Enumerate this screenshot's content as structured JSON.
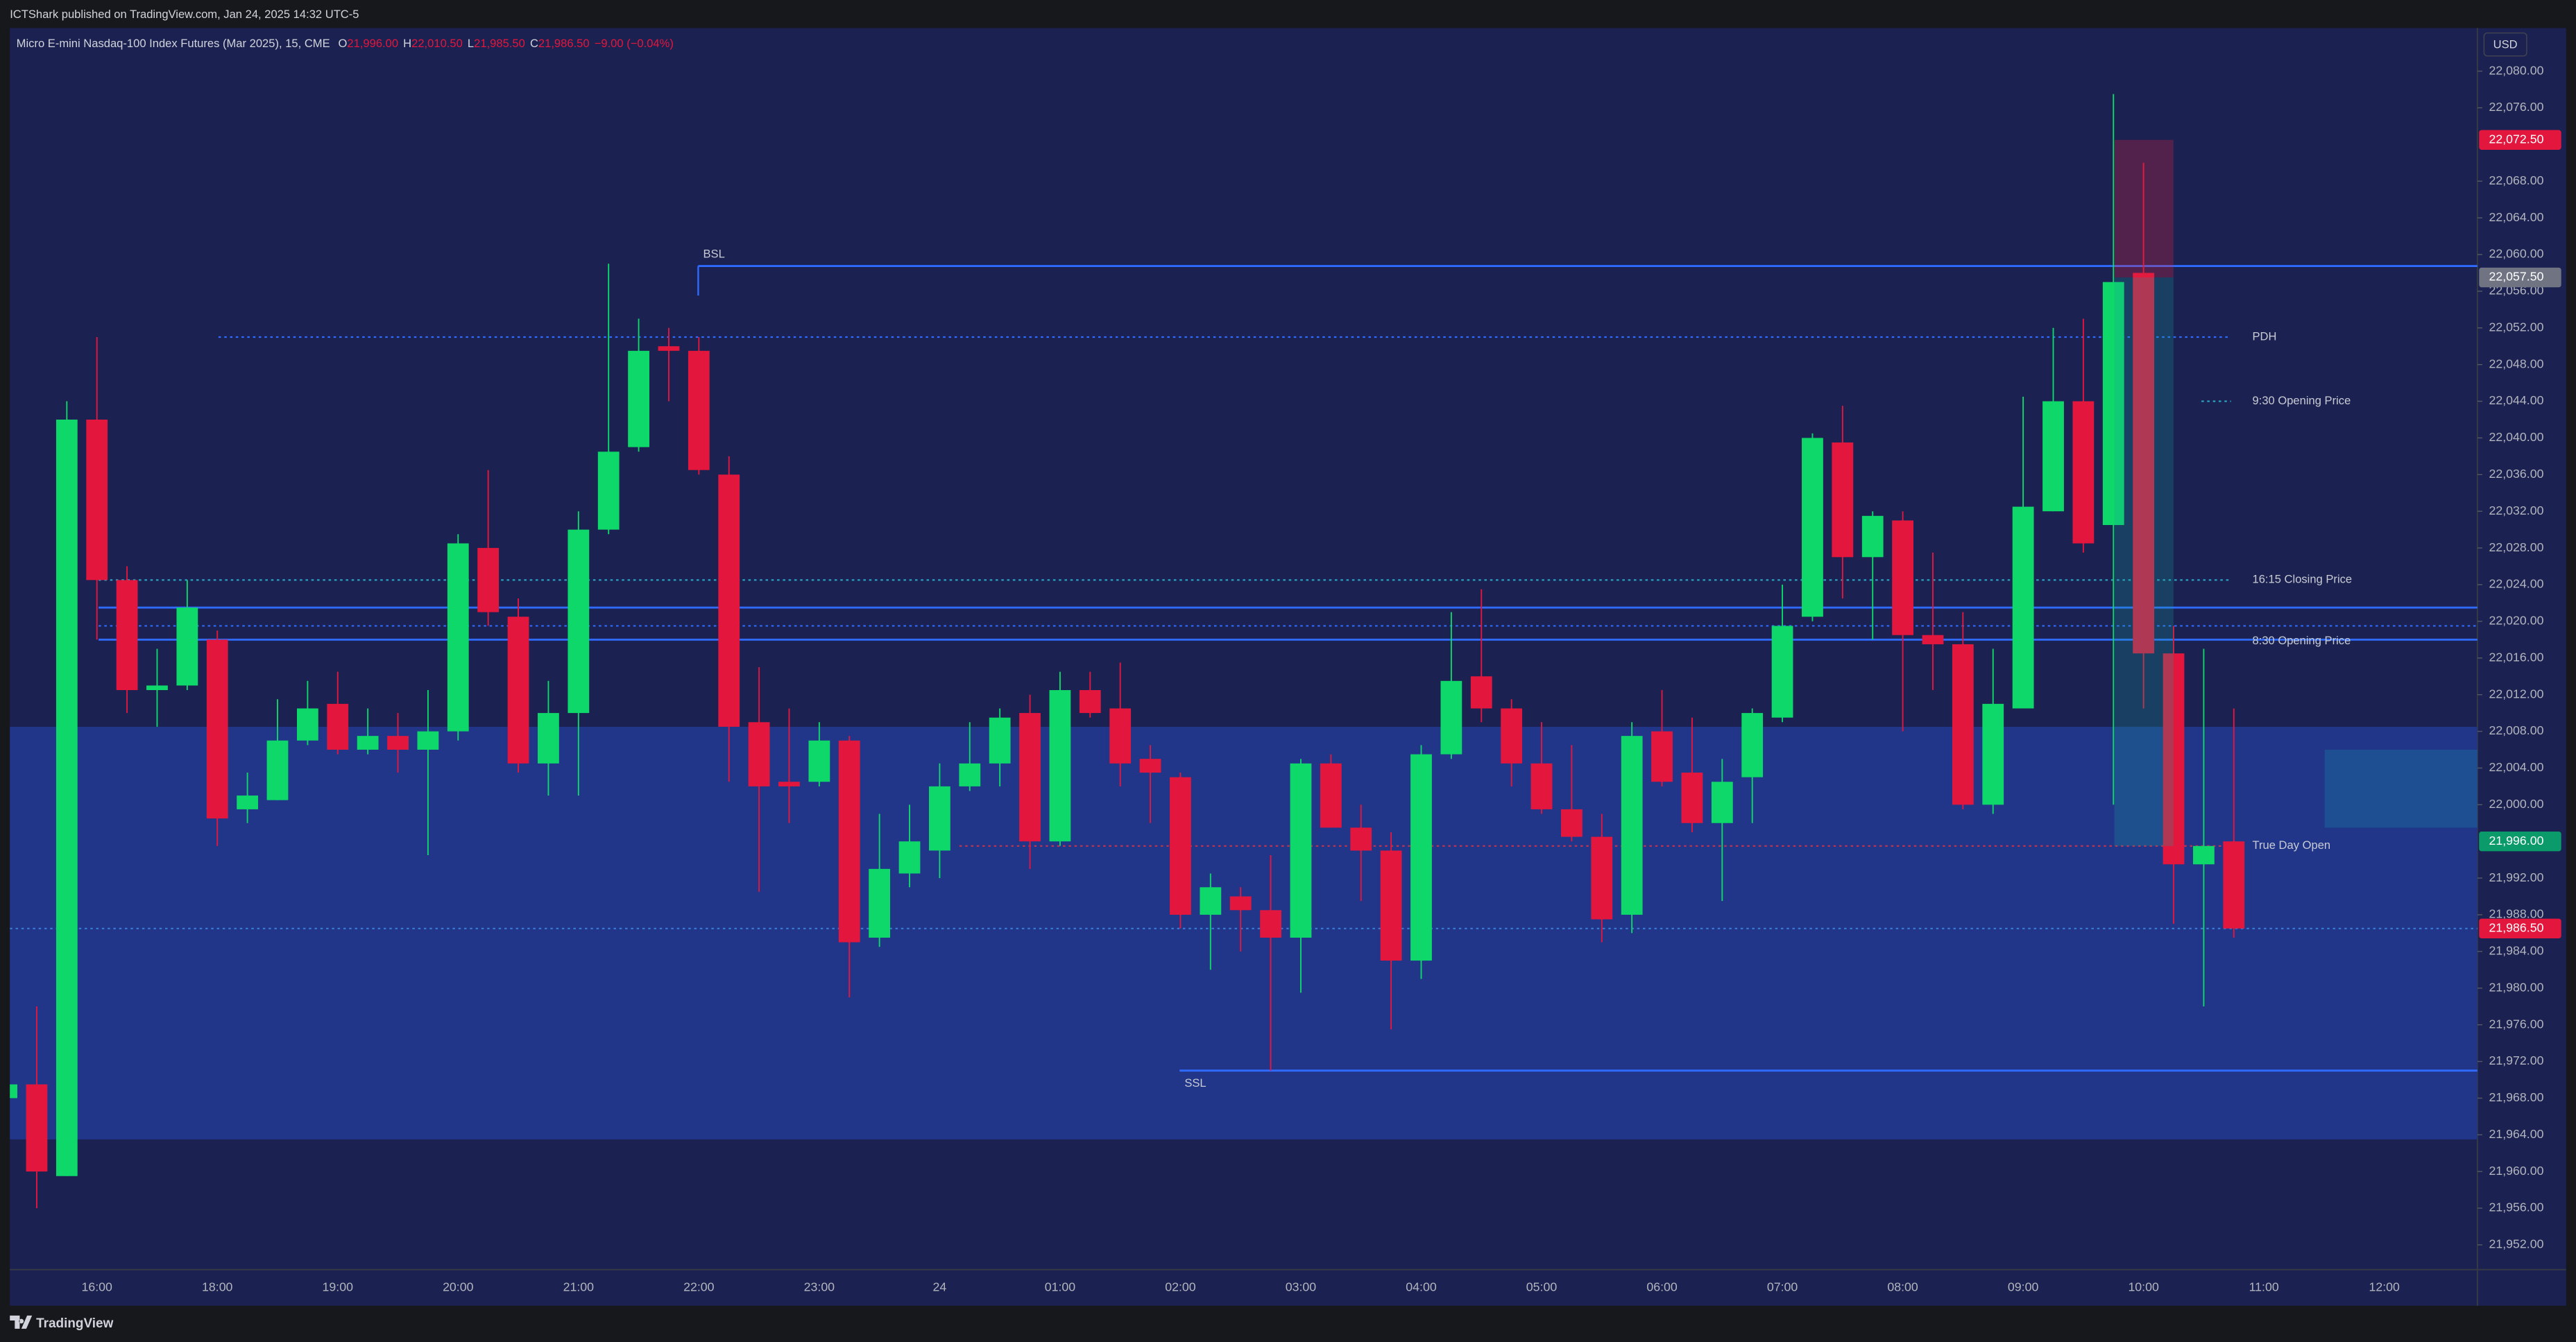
{
  "header": {
    "publisher": "ICTShark published on TradingView.com, Jan 24, 2025 14:32 UTC-5",
    "symbol": "Micro E-mini Nasdaq-100 Index Futures (Mar 2025), 15, CME",
    "ohlc": [
      {
        "key": "O",
        "value": "21,996.00"
      },
      {
        "key": "H",
        "value": "22,010.50"
      },
      {
        "key": "L",
        "value": "21,985.50"
      },
      {
        "key": "C",
        "value": "21,986.50"
      }
    ],
    "change": "−9.00 (−0.04%)",
    "currency": "USD",
    "brand": "TradingView"
  },
  "chart_data": {
    "type": "candlestick",
    "up_color": "#0fd86a",
    "down_color": "#e3173e",
    "categories": [
      null,
      null,
      null,
      "16:00",
      null,
      null,
      null,
      "18:00",
      null,
      null,
      null,
      "19:00",
      null,
      null,
      null,
      "20:00",
      null,
      null,
      null,
      "21:00",
      null,
      null,
      null,
      "22:00",
      null,
      null,
      null,
      "23:00",
      null,
      null,
      null,
      "24",
      null,
      null,
      null,
      "01:00",
      null,
      null,
      null,
      "02:00",
      null,
      null,
      null,
      "03:00",
      null,
      null,
      null,
      "04:00",
      null,
      null,
      null,
      "05:00",
      null,
      null,
      null,
      "06:00",
      null,
      null,
      null,
      "07:00",
      null,
      null,
      null,
      "08:00",
      null,
      null,
      null,
      "09:00",
      null,
      null,
      null,
      "10:00",
      null,
      null,
      null,
      "11:00",
      null,
      null,
      null,
      "12:00"
    ],
    "open": [
      21968,
      21969.5,
      21959.5,
      22042,
      22024.5,
      22012.5,
      22013,
      22018,
      21999.5,
      22000.5,
      22007,
      22011,
      22006,
      22007.5,
      22006,
      22008,
      22028,
      22020.5,
      22004.5,
      22010,
      22030,
      22039,
      22050,
      22049.5,
      22036,
      22009,
      22002.5,
      22002.5,
      22007,
      21985.5,
      21992.5,
      21995,
      22002,
      22004.5,
      22010,
      21996,
      22012.5,
      22010.5,
      22005,
      22003,
      21988,
      21990,
      21988.5,
      21985.5,
      22004.5,
      21997.5,
      21995,
      21983,
      22005.5,
      22014,
      22010.5,
      22004.5,
      21999.5,
      21996.5,
      21988,
      22008,
      22003.5,
      21998,
      22003,
      22009.5,
      22020.5,
      22039.5,
      22027,
      22031,
      22018.5,
      22017.5,
      22000,
      22010.5,
      22032,
      22044,
      22030.5,
      22058,
      22016.5,
      21993.5,
      21996,
      null,
      null,
      null,
      null,
      null
    ],
    "high": [
      21970.5,
      21978,
      22044,
      22051,
      22026,
      22017,
      22024.5,
      22019,
      22003.5,
      22011.5,
      22013.5,
      22014.5,
      22010.5,
      22010,
      22012.5,
      22029.5,
      22036.5,
      22022.5,
      22013.5,
      22032,
      22059,
      22053,
      22052,
      22051,
      22038,
      22015,
      22010.5,
      22009,
      22007.5,
      21999,
      22000,
      22004.5,
      22009,
      22010.5,
      22012,
      22014.5,
      22014.5,
      22015.5,
      22006.5,
      22003.5,
      21992.5,
      21991,
      21994.5,
      22005,
      22005.5,
      22000,
      21997,
      22006.5,
      22021,
      22023.5,
      22011.5,
      22009,
      22006.5,
      21999,
      22009,
      22012.5,
      22009.5,
      22005,
      22010.5,
      22024,
      22040.5,
      22043.5,
      22032,
      22032,
      22027.5,
      22021,
      22017,
      22044.5,
      22052,
      22053,
      22077.5,
      22070,
      22019.5,
      22017,
      22010.5,
      null,
      null,
      null,
      null,
      null
    ],
    "low": [
      21967.5,
      21956,
      21959.5,
      22018,
      22010,
      22008.5,
      22012.5,
      21995.5,
      21998,
      22000.5,
      22006.5,
      22005.5,
      22005.5,
      22003.5,
      21994.5,
      22007,
      22019.5,
      22003.5,
      22001,
      22001,
      22029.5,
      22038.5,
      22044,
      22036,
      22002.5,
      21990.5,
      21998,
      22002,
      21979,
      21984.5,
      21991,
      21992,
      22001.5,
      22002,
      21993,
      21995.5,
      22009.5,
      22002,
      21998,
      21986.5,
      21982,
      21984,
      21971,
      21979.5,
      21997.5,
      21989.5,
      21975.5,
      21981,
      22005,
      22009,
      22002,
      21999,
      21996,
      21985,
      21986,
      22002,
      21997,
      21989.5,
      21998,
      22009,
      22020,
      22022.5,
      22018,
      22008,
      22012.5,
      21999.5,
      21999,
      22010.5,
      22032,
      22027.5,
      22000,
      22010.5,
      21987,
      21978,
      21985.5,
      null,
      null,
      null,
      null,
      null
    ],
    "close": [
      21969.5,
      21960,
      22042,
      22024.5,
      22012.5,
      22013,
      22021.5,
      21998.5,
      22001,
      22007,
      22010.5,
      22006,
      22007.5,
      22006,
      22008,
      22028.5,
      22021,
      22004.5,
      22010,
      22030,
      22038.5,
      22049.5,
      22049.5,
      22036.5,
      22008.5,
      22002,
      22002,
      22007,
      21985,
      21993,
      21996,
      22002,
      22004.5,
      22009.5,
      21996,
      22012.5,
      22010,
      22004.5,
      22003.5,
      21988,
      21991,
      21988.5,
      21985.5,
      22004.5,
      21997.5,
      21995,
      21983,
      22005.5,
      22013.5,
      22010.5,
      22004.5,
      21999.5,
      21996.5,
      21987.5,
      22007.5,
      22002.5,
      21998,
      22002.5,
      22010,
      22019.5,
      22040,
      22027,
      22031.5,
      22018.5,
      22017.5,
      22000,
      22011,
      22032.5,
      22044,
      22028.5,
      22057,
      22016.5,
      21993.5,
      21995.5,
      21986.5,
      null,
      null,
      null,
      null,
      null
    ],
    "ylim": [
      21949.3,
      22084.7
    ],
    "yticks": [
      {
        "value": 21952,
        "label": "21,952.00"
      },
      {
        "value": 21956,
        "label": "21,956.00"
      },
      {
        "value": 21960,
        "label": "21,960.00"
      },
      {
        "value": 21964,
        "label": "21,964.00"
      },
      {
        "value": 21968,
        "label": "21,968.00"
      },
      {
        "value": 21972,
        "label": "21,972.00"
      },
      {
        "value": 21976,
        "label": "21,976.00"
      },
      {
        "value": 21980,
        "label": "21,980.00"
      },
      {
        "value": 21984,
        "label": "21,984.00"
      },
      {
        "value": 21988,
        "label": "21,988.00"
      },
      {
        "value": 21992,
        "label": "21,992.00"
      },
      {
        "value": 22000,
        "label": "22,000.00"
      },
      {
        "value": 22004,
        "label": "22,004.00"
      },
      {
        "value": 22008,
        "label": "22,008.00"
      },
      {
        "value": 22012,
        "label": "22,012.00"
      },
      {
        "value": 22016,
        "label": "22,016.00"
      },
      {
        "value": 22020,
        "label": "22,020.00"
      },
      {
        "value": 22024,
        "label": "22,024.00"
      },
      {
        "value": 22028,
        "label": "22,028.00"
      },
      {
        "value": 22032,
        "label": "22,032.00"
      },
      {
        "value": 22036,
        "label": "22,036.00"
      },
      {
        "value": 22040,
        "label": "22,040.00"
      },
      {
        "value": 22044,
        "label": "22,044.00"
      },
      {
        "value": 22048,
        "label": "22,048.00"
      },
      {
        "value": 22052,
        "label": "22,052.00"
      },
      {
        "value": 22056,
        "label": "22,056.00"
      },
      {
        "value": 22060,
        "label": "22,060.00"
      },
      {
        "value": 22064,
        "label": "22,064.00"
      },
      {
        "value": 22068,
        "label": "22,068.00"
      },
      {
        "value": 22076,
        "label": "22,076.00"
      },
      {
        "value": 22080,
        "label": "22,080.00"
      }
    ],
    "grid": false,
    "zones": [
      {
        "top": 22008.5,
        "bottom": 21963.5,
        "color": "#213689"
      },
      {
        "top": 22006,
        "bottom": 21997.5,
        "color": "#1d4f92"
      },
      {
        "top": 22072.5,
        "bottom": 22057.5,
        "color": "rgba(226,40,70,0.28)"
      },
      {
        "top": 22057.5,
        "bottom": 21995.5,
        "color": "rgba(20,160,150,0.25)"
      }
    ],
    "levels": [
      {
        "label": "BSL",
        "value": 22058.75,
        "style": "solid",
        "color": "#2f6bff"
      },
      {
        "label": "SSL",
        "value": 21971,
        "style": "solid",
        "color": "#2f6bff"
      },
      {
        "label": "PDH",
        "value": 22051,
        "style": "dotted",
        "color": "#2f6bff"
      },
      {
        "label": "9:30 Opening Price",
        "value": 22044,
        "style": "dotted",
        "color": "#2ba7c8"
      },
      {
        "label": "16:15 Closing Price",
        "value": 22024.5,
        "style": "dotted",
        "color": "#2ba7c8"
      },
      {
        "value": 22021.5,
        "style": "solid",
        "color": "#2f6bff"
      },
      {
        "value": 22019.5,
        "style": "dotted",
        "color": "#2f6bff"
      },
      {
        "label": "8:30 Opening Price",
        "value": 22018,
        "style": "solid",
        "color": "#2f6bff"
      },
      {
        "label": "True Day Open",
        "value": 21995.5,
        "style": "dotted",
        "color": "#c2334f"
      },
      {
        "value": 21986.5,
        "style": "dotted",
        "color": "#3a7bd5"
      }
    ],
    "price_labels": [
      {
        "value": 22072.5,
        "label": "22,072.50",
        "color": "#e3173e"
      },
      {
        "value": 22057.5,
        "label": "22,057.50",
        "color": "#6f7382"
      },
      {
        "value": 21996,
        "label": "21,996.00",
        "color": "#0b9a6a"
      },
      {
        "value": 21986.5,
        "label": "21,986.50",
        "color": "#e3173e"
      }
    ]
  }
}
